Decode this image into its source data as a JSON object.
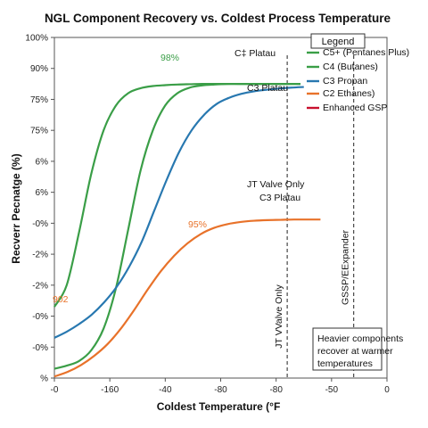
{
  "chart_data": {
    "type": "line",
    "title": "NGL Component Recovery vs. Coldest Process Temperature",
    "xlabel": "Coldest Temperature (°F",
    "ylabel": "Recverr Pecnatge (%)",
    "x_tick_labels": [
      "-0",
      "-160",
      "-40",
      "-80",
      "-80",
      "-50",
      "0"
    ],
    "y_tick_labels": [
      "100%",
      "90%",
      "75%",
      "75%",
      "6%",
      "6%",
      "-0%",
      "-2%",
      "-2%",
      "-0%",
      "-0%",
      "%"
    ],
    "grid": false,
    "legend": {
      "title": "Legend",
      "placement": "top-right",
      "entries": [
        {
          "label": "C5+ (Pentanes Plus)",
          "color": "#3a9e47"
        },
        {
          "label": "C4 (Butanes)",
          "color": "#3a9e47"
        },
        {
          "label": "C3 Propan",
          "color": "#2878b0"
        },
        {
          "label": "C2 Ethanes)",
          "color": "#e8722a"
        },
        {
          "label": "Enhanced GSP",
          "color": "#c8102e"
        }
      ]
    },
    "series": [
      {
        "name": "C5+ (Pentanes Plus)",
        "color": "#3a9e47",
        "x": [
          0,
          0.5,
          1,
          1.5,
          2,
          2.5,
          3,
          3.5,
          4,
          4.5,
          5,
          5.5,
          6,
          6.5,
          7,
          7.5,
          8,
          8.5,
          9,
          9.5,
          10
        ],
        "y": [
          2.3,
          3.0,
          4.7,
          6.6,
          8.0,
          8.8,
          9.2,
          9.36,
          9.43,
          9.46,
          9.48,
          9.49,
          9.5,
          9.5,
          9.5,
          9.5,
          9.5,
          9.5,
          9.5,
          9.5,
          9.5
        ]
      },
      {
        "name": "C4 (Butanes)",
        "color": "#3a9e47",
        "x": [
          0,
          0.5,
          1,
          1.5,
          2,
          2.5,
          3,
          3.5,
          4,
          4.5,
          5,
          5.5,
          6,
          6.5,
          7,
          7.5,
          8,
          8.5,
          9,
          9.5,
          10
        ],
        "y": [
          0.3,
          0.4,
          0.55,
          0.9,
          1.6,
          2.9,
          4.8,
          6.7,
          8.0,
          8.8,
          9.2,
          9.38,
          9.45,
          9.48,
          9.5,
          9.5,
          9.5,
          9.5,
          9.5,
          9.5,
          9.5
        ]
      },
      {
        "name": "C3 Propan",
        "color": "#2878b0",
        "x": [
          0,
          0.5,
          1,
          1.5,
          2,
          2.5,
          3,
          3.5,
          4,
          4.5,
          5,
          5.5,
          6,
          6.5,
          7,
          7.5,
          8,
          8.5,
          9,
          9.5,
          10
        ],
        "y": [
          1.3,
          1.5,
          1.75,
          2.05,
          2.45,
          2.95,
          3.6,
          4.4,
          5.4,
          6.4,
          7.3,
          8.0,
          8.5,
          8.85,
          9.05,
          9.18,
          9.26,
          9.31,
          9.35,
          9.38,
          9.4
        ]
      },
      {
        "name": "C2 Ethanes)",
        "color": "#e8722a",
        "x": [
          0,
          0.5,
          1,
          1.5,
          2,
          2.5,
          3,
          3.5,
          4,
          4.5,
          5,
          5.5,
          6,
          6.5,
          7,
          7.5,
          8,
          8.5,
          9,
          9.5,
          10
        ],
        "y": [
          0.05,
          0.2,
          0.42,
          0.72,
          1.1,
          1.6,
          2.2,
          2.85,
          3.45,
          3.95,
          4.35,
          4.65,
          4.85,
          4.97,
          5.04,
          5.08,
          5.1,
          5.11,
          5.12,
          5.12,
          5.12
        ]
      }
    ],
    "vertical_lines": [
      {
        "label": "JT VValve Only",
        "x_index": 7.0
      },
      {
        "label": "GSSP/EExpander",
        "x_index": 9.0
      }
    ],
    "annotations": {
      "c4_plateau": "C‡ Platau",
      "c3_plateau": "C3 Platau",
      "jt_valve_only": "JT Valve Only",
      "c2_plateau": "C3 Platau",
      "label_98": "98%",
      "label_95": "95%",
      "label_902": "902",
      "note_lines": [
        "Heavier components",
        "recover at warmer",
        "temperatures"
      ]
    }
  }
}
